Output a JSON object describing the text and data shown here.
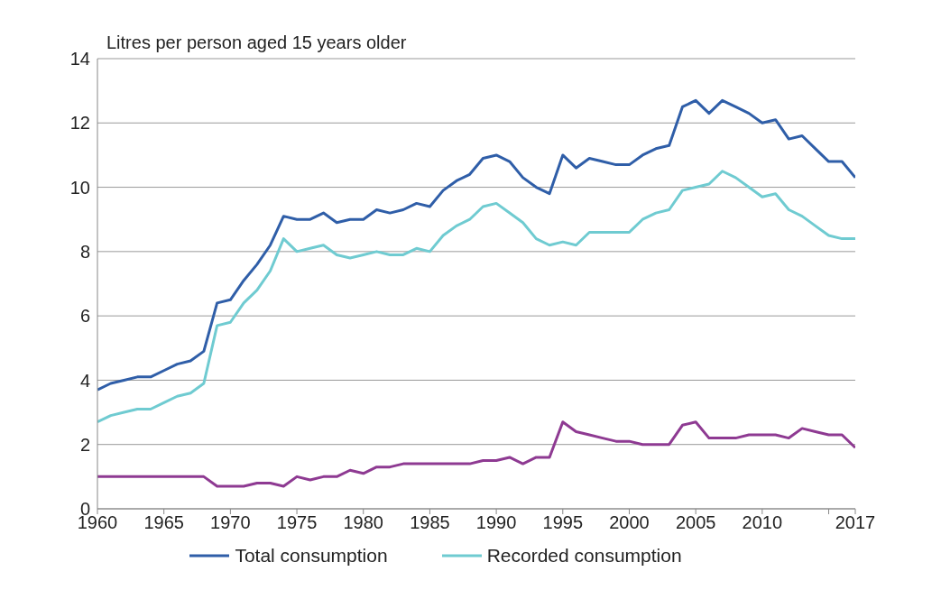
{
  "chart_data": {
    "type": "line",
    "ylabel": "Litres per person aged 15 years older",
    "x": [
      1960,
      1961,
      1962,
      1963,
      1964,
      1965,
      1966,
      1967,
      1968,
      1969,
      1970,
      1971,
      1972,
      1973,
      1974,
      1975,
      1976,
      1977,
      1978,
      1979,
      1980,
      1981,
      1982,
      1983,
      1984,
      1985,
      1986,
      1987,
      1988,
      1989,
      1990,
      1991,
      1992,
      1993,
      1994,
      1995,
      1996,
      1997,
      1998,
      1999,
      2000,
      2001,
      2002,
      2003,
      2004,
      2005,
      2006,
      2007,
      2008,
      2009,
      2010,
      2011,
      2012,
      2013,
      2014,
      2015,
      2016,
      2017
    ],
    "series": [
      {
        "name": "Total consumption",
        "color": "#2f5ea8",
        "values": [
          3.7,
          3.9,
          4.0,
          4.1,
          4.1,
          4.3,
          4.5,
          4.6,
          4.9,
          6.4,
          6.5,
          7.1,
          7.6,
          8.2,
          9.1,
          9.0,
          9.0,
          9.2,
          8.9,
          9.0,
          9.0,
          9.3,
          9.2,
          9.3,
          9.5,
          9.4,
          9.9,
          10.2,
          10.4,
          10.9,
          11.0,
          10.8,
          10.3,
          10.0,
          9.8,
          11.0,
          10.6,
          10.9,
          10.8,
          10.7,
          10.7,
          11.0,
          11.2,
          11.3,
          12.5,
          12.7,
          12.3,
          12.7,
          12.5,
          12.3,
          12.0,
          12.1,
          11.5,
          11.6,
          11.2,
          10.8,
          10.8,
          10.3
        ]
      },
      {
        "name": "Recorded consumption",
        "color": "#6fcbd1",
        "values": [
          2.7,
          2.9,
          3.0,
          3.1,
          3.1,
          3.3,
          3.5,
          3.6,
          3.9,
          5.7,
          5.8,
          6.4,
          6.8,
          7.4,
          8.4,
          8.0,
          8.1,
          8.2,
          7.9,
          7.8,
          7.9,
          8.0,
          7.9,
          7.9,
          8.1,
          8.0,
          8.5,
          8.8,
          9.0,
          9.4,
          9.5,
          9.2,
          8.9,
          8.4,
          8.2,
          8.3,
          8.2,
          8.6,
          8.6,
          8.6,
          8.6,
          9.0,
          9.2,
          9.3,
          9.9,
          10.0,
          10.1,
          10.5,
          10.3,
          10.0,
          9.7,
          9.8,
          9.3,
          9.1,
          8.8,
          8.5,
          8.4,
          8.4
        ]
      },
      {
        "color": "#8e3a92",
        "values": [
          1.0,
          1.0,
          1.0,
          1.0,
          1.0,
          1.0,
          1.0,
          1.0,
          1.0,
          0.7,
          0.7,
          0.7,
          0.8,
          0.8,
          0.7,
          1.0,
          0.9,
          1.0,
          1.0,
          1.2,
          1.1,
          1.3,
          1.3,
          1.4,
          1.4,
          1.4,
          1.4,
          1.4,
          1.4,
          1.5,
          1.5,
          1.6,
          1.4,
          1.6,
          1.6,
          2.7,
          2.4,
          2.3,
          2.2,
          2.1,
          2.1,
          2.0,
          2.0,
          2.0,
          2.6,
          2.7,
          2.2,
          2.2,
          2.2,
          2.3,
          2.3,
          2.3,
          2.2,
          2.5,
          2.4,
          2.3,
          2.3,
          1.9
        ]
      }
    ],
    "xlim": [
      1960,
      2017
    ],
    "xticks": [
      1960,
      1965,
      1970,
      1975,
      1980,
      1985,
      1990,
      1995,
      2000,
      2005,
      2010,
      {
        "value": 2015,
        "label": null
      },
      2017
    ],
    "ylim": [
      0,
      14
    ],
    "yticks": [
      0,
      2,
      4,
      6,
      8,
      10,
      12,
      14
    ],
    "grid": "y",
    "legend": "bottom",
    "marker": "none",
    "line_style": "solid"
  }
}
